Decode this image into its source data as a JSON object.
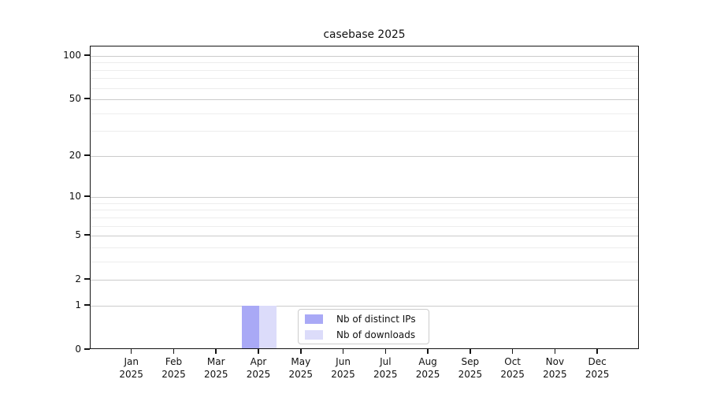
{
  "chart_data": {
    "type": "bar",
    "title": "casebase 2025",
    "categories": [
      "Jan",
      "Feb",
      "Mar",
      "Apr",
      "May",
      "Jun",
      "Jul",
      "Aug",
      "Sep",
      "Oct",
      "Nov",
      "Dec"
    ],
    "year_label": "2025",
    "series": [
      {
        "name": "Nb of distinct IPs",
        "color": "#a9a9f6",
        "values": [
          0,
          0,
          0,
          1,
          0,
          0,
          0,
          0,
          0,
          0,
          0,
          0
        ]
      },
      {
        "name": "Nb of downloads",
        "color": "#dcdcfa",
        "values": [
          0,
          0,
          0,
          1,
          0,
          0,
          0,
          0,
          0,
          0,
          0,
          0
        ]
      }
    ],
    "xlabel": "",
    "ylabel": "",
    "yscale": "symlog-log1p",
    "ylim": [
      0,
      116
    ],
    "y_major_ticks": [
      0,
      1,
      2,
      5,
      10,
      20,
      50,
      100
    ],
    "y_minor_gridlines": [
      3,
      4,
      6,
      7,
      8,
      9,
      30,
      40,
      60,
      70,
      80,
      90
    ],
    "grid": "horizontal",
    "legend_position": "inside-bottom-center",
    "colors": {
      "axis": "#141414",
      "text": "#111111",
      "major_grid": "#cbcbcb",
      "minor_grid": "#ededed",
      "legend_border": "#cccccc",
      "background": "#ffffff"
    }
  }
}
